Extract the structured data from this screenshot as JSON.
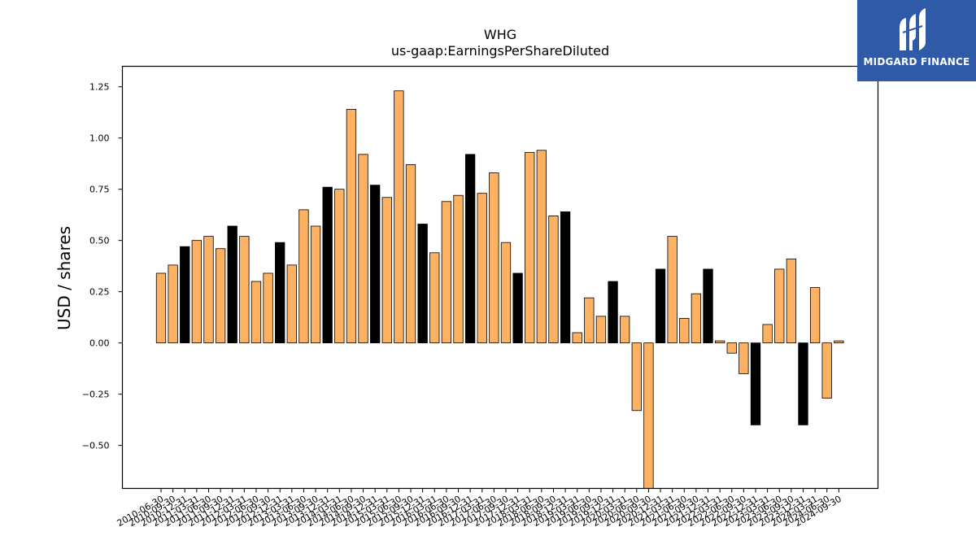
{
  "brand": {
    "name": "MIDGARD FINANCE",
    "color": "#2f5aa8"
  },
  "chart_data": {
    "type": "bar",
    "title": "WHG",
    "subtitle": "us-gaap:EarningsPerShareDiluted",
    "xlabel": "",
    "ylabel": "USD / shares",
    "ylim": [
      -0.71,
      1.35
    ],
    "yticks": [
      1.25,
      1.0,
      0.75,
      0.5,
      0.25,
      0.0,
      -0.25,
      -0.5
    ],
    "ytick_labels": [
      "1.25",
      "1.00",
      "0.75",
      "0.50",
      "0.25",
      "0.00",
      "−0.25",
      "−0.50"
    ],
    "grid": false,
    "colors": {
      "quarter": "#fdb163",
      "annual": "#000000",
      "edge": "#000000"
    },
    "categories": [
      "2010-06-30",
      "2010-09-30",
      "2010-12-31",
      "2011-03-31",
      "2011-06-30",
      "2011-09-30",
      "2011-12-31",
      "2012-03-31",
      "2012-06-30",
      "2012-09-30",
      "2012-12-31",
      "2013-03-31",
      "2013-06-30",
      "2013-09-30",
      "2013-12-31",
      "2014-03-31",
      "2014-06-30",
      "2014-09-30",
      "2014-12-31",
      "2015-03-31",
      "2015-06-30",
      "2015-09-30",
      "2015-12-31",
      "2016-03-31",
      "2016-06-30",
      "2016-09-30",
      "2016-12-31",
      "2017-03-31",
      "2017-06-30",
      "2017-09-30",
      "2017-12-31",
      "2018-03-31",
      "2018-06-30",
      "2018-09-30",
      "2018-12-31",
      "2019-03-31",
      "2019-06-30",
      "2019-09-30",
      "2019-12-31",
      "2020-03-31",
      "2020-06-30",
      "2020-09-30",
      "2020-12-31",
      "2021-03-31",
      "2021-06-30",
      "2021-09-30",
      "2021-12-31",
      "2022-03-31",
      "2022-06-30",
      "2022-09-30",
      "2022-12-31",
      "2023-03-31",
      "2023-06-30",
      "2023-09-30",
      "2023-12-31",
      "2024-03-31",
      "2024-06-30",
      "2024-09-30"
    ],
    "values": [
      0.34,
      0.38,
      0.47,
      0.5,
      0.52,
      0.46,
      0.57,
      0.52,
      0.3,
      0.34,
      0.49,
      0.38,
      0.65,
      0.57,
      0.76,
      0.75,
      1.14,
      0.92,
      0.77,
      0.71,
      1.23,
      0.87,
      0.58,
      0.44,
      0.69,
      0.72,
      0.92,
      0.73,
      0.83,
      0.49,
      0.34,
      0.93,
      0.94,
      0.62,
      0.64,
      0.05,
      0.22,
      0.13,
      0.3,
      0.13,
      -0.33,
      -0.75,
      0.36,
      0.52,
      0.12,
      0.24,
      0.36,
      0.01,
      -0.05,
      -0.15,
      -0.4,
      0.09,
      0.36,
      0.41,
      -0.4,
      0.27,
      -0.27,
      0.01
    ],
    "annual": [
      false,
      false,
      true,
      false,
      false,
      false,
      true,
      false,
      false,
      false,
      true,
      false,
      false,
      false,
      true,
      false,
      false,
      false,
      true,
      false,
      false,
      false,
      true,
      false,
      false,
      false,
      true,
      false,
      false,
      false,
      true,
      false,
      false,
      false,
      true,
      false,
      false,
      false,
      true,
      false,
      false,
      false,
      true,
      false,
      false,
      false,
      true,
      false,
      false,
      false,
      true,
      false,
      false,
      false,
      true,
      false,
      false,
      false
    ]
  }
}
